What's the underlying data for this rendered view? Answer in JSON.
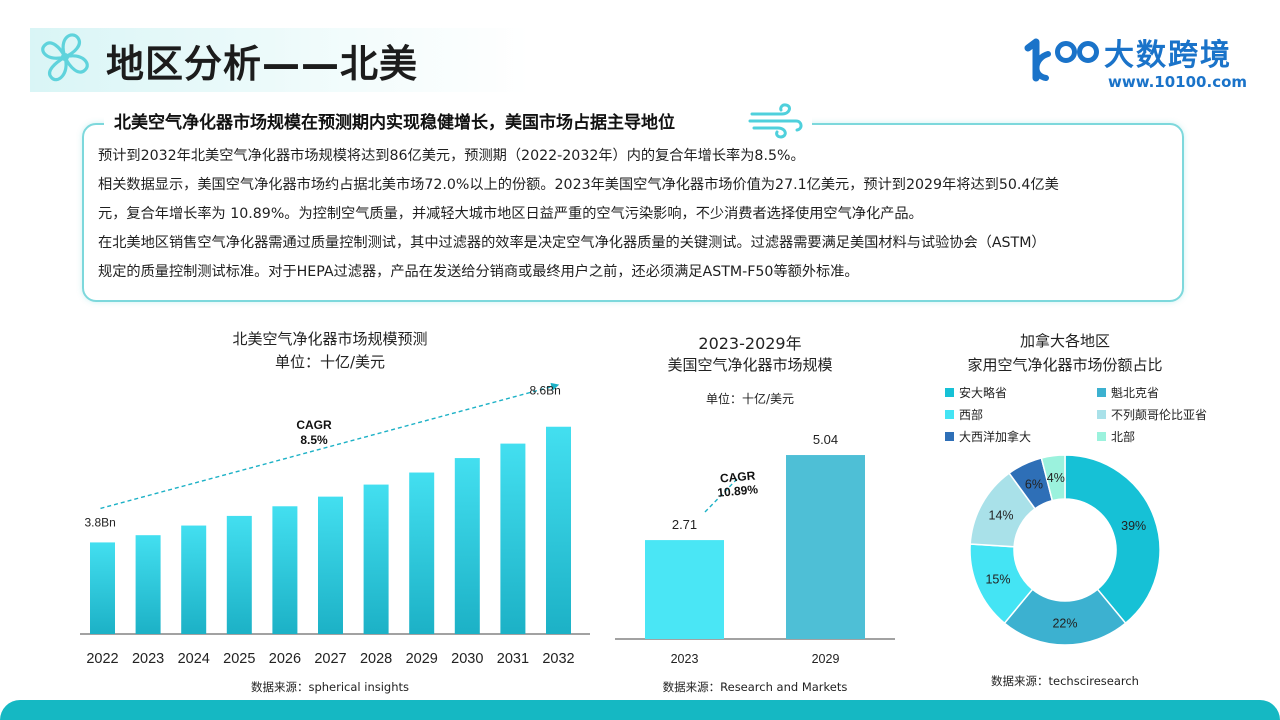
{
  "header": {
    "title": "地区分析——北美",
    "logo_name": "大数跨境",
    "logo_url": "www.10100.com",
    "logo_mark_text": "100"
  },
  "intro": {
    "heading": "北美空气净化器市场规模在预测期内实现稳健增长，美国市场占据主导地位",
    "lines": [
      "预计到2032年北美空气净化器市场规模将达到86亿美元，预测期（2022-2032年）内的复合年增长率为8.5%。",
      "相关数据显示，美国空气净化器市场约占据北美市场72.0%以上的份额。2023年美国空气净化器市场价值为27.1亿美元，预计到2029年将达到50.4亿美",
      "元，复合年增长率为 10.89%。为控制空气质量，并减轻大城市地区日益严重的空气污染影响，不少消费者选择使用空气净化产品。",
      "在北美地区销售空气净化器需通过质量控制测试，其中过滤器的效率是决定空气净化器质量的关键测试。过滤器需要满足美国材料与试验协会（ASTM）",
      "规定的质量控制测试标准。对于HEPA过滤器，产品在发送给分销商或最终用户之前，还必须满足ASTM-F50等额外标准。"
    ]
  },
  "colors": {
    "teal_light": "#43dff0",
    "teal_dark": "#1cb1c6",
    "us_2023": "#4ae6f5",
    "us_2029": "#4ebfd6",
    "accent": "#1a73c9"
  },
  "chart_data": [
    {
      "type": "bar",
      "title": "北美空气净化器市场规模预测",
      "subtitle": "单位：十亿/美元",
      "categories": [
        "2022",
        "2023",
        "2024",
        "2025",
        "2026",
        "2027",
        "2028",
        "2029",
        "2030",
        "2031",
        "2032"
      ],
      "values": [
        3.8,
        4.1,
        4.5,
        4.9,
        5.3,
        5.7,
        6.2,
        6.7,
        7.3,
        7.9,
        8.6
      ],
      "start_label": "3.8Bn",
      "end_label": "8.6Bn",
      "annotation": {
        "label": "CAGR",
        "value": "8.5%"
      },
      "source": "数据来源：spherical insights",
      "grid": false
    },
    {
      "type": "bar",
      "title": "2023-2029年",
      "subtitle": "美国空气净化器市场规模",
      "unit": "单位：十亿/美元",
      "categories": [
        "2023",
        "2029"
      ],
      "values": [
        2.71,
        5.04
      ],
      "value_labels": [
        "2.71",
        "5.04"
      ],
      "annotation": {
        "label": "CAGR",
        "value": "10.89%"
      },
      "source": "数据来源：Research and Markets",
      "grid": false
    },
    {
      "type": "pie",
      "title": "加拿大各地区",
      "subtitle": "家用空气净化器市场份额占比",
      "labels": [
        "安大略省",
        "魁北克省",
        "西部",
        "不列颠哥伦比亚省",
        "大西洋加拿大",
        "北部"
      ],
      "values": [
        39,
        22,
        15,
        14,
        6,
        4
      ],
      "value_labels": [
        "39%",
        "22%",
        "15%",
        "14%",
        "6%",
        "4%"
      ],
      "colors": [
        "#16c1d6",
        "#3cb1d0",
        "#44e4f4",
        "#a9e1e9",
        "#2e6fb7",
        "#9bf2dd"
      ],
      "legend_position": "top",
      "source": "数据来源：techsciresearch"
    }
  ]
}
